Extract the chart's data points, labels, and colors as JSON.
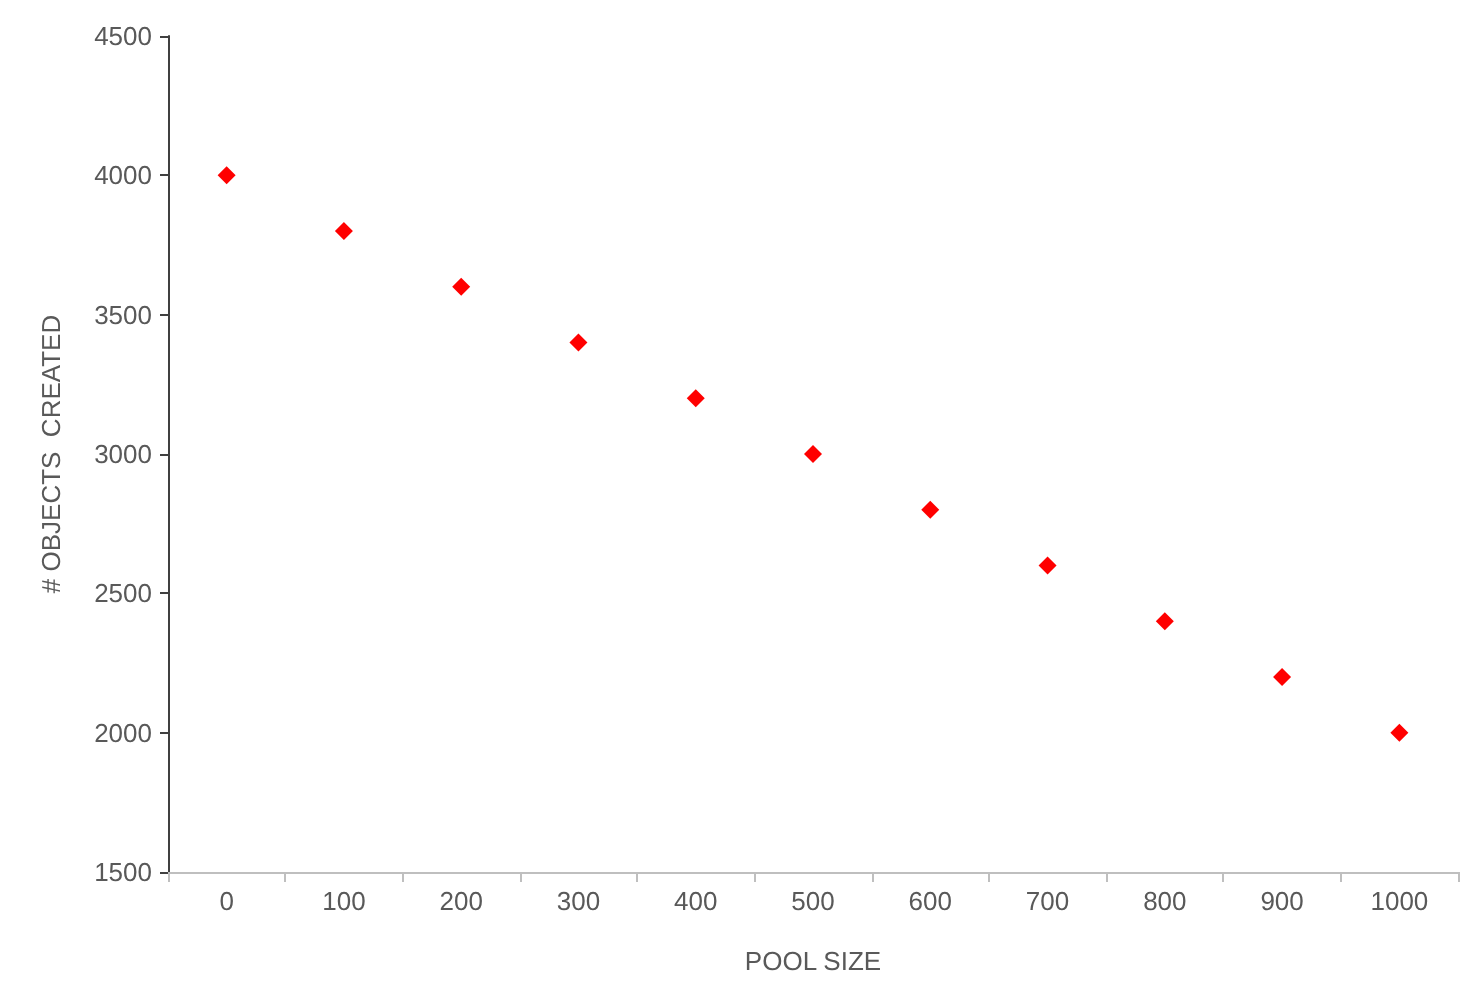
{
  "chart_data": {
    "type": "scatter",
    "xlabel": "POOL SIZE",
    "ylabel": "# OBJECTS  CREATED",
    "categories": [
      "0",
      "100",
      "200",
      "300",
      "400",
      "500",
      "600",
      "700",
      "800",
      "900",
      "1000"
    ],
    "series": [
      {
        "color": "#ff0000",
        "values": [
          4000,
          3800,
          3600,
          3400,
          3200,
          3000,
          2800,
          2600,
          2400,
          2200,
          2000
        ]
      }
    ],
    "ylim": [
      1500,
      4500
    ],
    "yticks": [
      1500,
      2000,
      2500,
      3000,
      3500,
      4000,
      4500
    ],
    "grid": false,
    "marker": "diamond"
  }
}
